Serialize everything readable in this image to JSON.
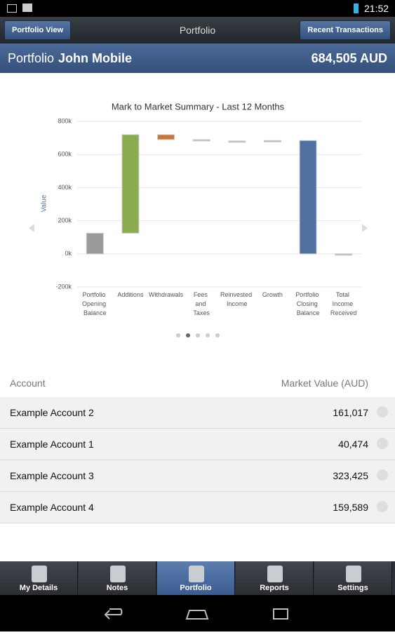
{
  "status_bar": {
    "time": "21:52"
  },
  "nav": {
    "left_button": "Portfolio View",
    "title": "Portfolio",
    "right_button": "Recent Transactions"
  },
  "header": {
    "label": "Portfolio",
    "name": "John Mobile",
    "total": "684,505 AUD"
  },
  "chart_data": {
    "type": "waterfall",
    "title": "Mark to Market Summary - Last 12 Months",
    "y_label": "Value",
    "categories": [
      "Portfolio Opening Balance",
      "Additions",
      "Withdrawals",
      "Fees and Taxes",
      "Reinvested Income",
      "Growth",
      "Portfolio Closing Balance",
      "Total Income Received"
    ],
    "values": [
      125000,
      595000,
      -30000,
      -8000,
      0,
      2505,
      684505,
      0
    ],
    "measure": [
      "absolute",
      "relative",
      "relative",
      "relative",
      "relative",
      "relative",
      "absolute",
      "absolute"
    ],
    "colors": [
      "#9a9a9a",
      "#8aab4f",
      "#c8763a",
      "#b8b8b8",
      "#b8b8b8",
      "#b8b8b8",
      "#4f70a0",
      "#b8b8b8"
    ],
    "ylim": [
      -200000,
      800000
    ],
    "yticks": [
      {
        "value": -200000,
        "label": "-200k"
      },
      {
        "value": 0,
        "label": "0k"
      },
      {
        "value": 200000,
        "label": "200k"
      },
      {
        "value": 400000,
        "label": "400k"
      },
      {
        "value": 600000,
        "label": "600k"
      },
      {
        "value": 800000,
        "label": "800k"
      }
    ],
    "grid": true
  },
  "table": {
    "columns": [
      "Account",
      "Market Value (AUD)"
    ],
    "rows": [
      [
        "Example Account 2",
        "161,017"
      ],
      [
        "Example Account 1",
        "40,474"
      ],
      [
        "Example Account 3",
        "323,425"
      ],
      [
        "Example Account 4",
        "159,589"
      ]
    ]
  },
  "tabs": [
    "My Details",
    "Notes",
    "Portfolio",
    "Reports",
    "Settings"
  ]
}
